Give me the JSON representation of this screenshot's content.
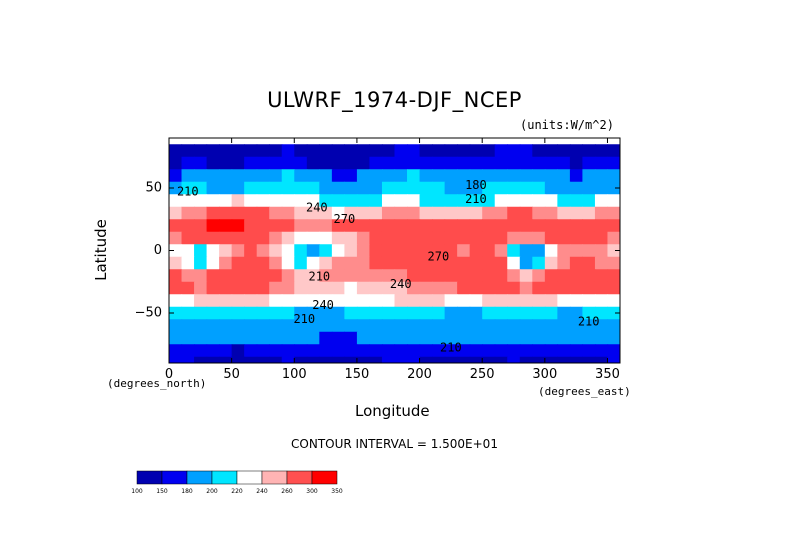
{
  "chart_data": {
    "type": "heatmap",
    "title": "ULWRF_1974-DJF_NCEP",
    "units": "(units:W/m^2)",
    "xlabel": "Longitude",
    "ylabel": "Latitude",
    "x_units": "(degrees_north)",
    "y_units": "(degrees_east)",
    "xlim": [
      0,
      360
    ],
    "ylim": [
      -90,
      90
    ],
    "x_ticks": [
      0,
      50,
      100,
      150,
      200,
      250,
      300,
      350
    ],
    "y_ticks": [
      -50,
      0,
      50
    ],
    "contour_interval": "CONTOUR INTERVAL = 1.500E+01",
    "contour_labels": [
      {
        "value": "210",
        "lon": 15,
        "lat": 47
      },
      {
        "value": "180",
        "lon": 245,
        "lat": 52
      },
      {
        "value": "210",
        "lon": 245,
        "lat": 41
      },
      {
        "value": "240",
        "lon": 118,
        "lat": 34
      },
      {
        "value": "270",
        "lon": 140,
        "lat": 25
      },
      {
        "value": "270",
        "lon": 215,
        "lat": -5
      },
      {
        "value": "240",
        "lon": 185,
        "lat": -27
      },
      {
        "value": "210",
        "lon": 120,
        "lat": -21
      },
      {
        "value": "240",
        "lon": 123,
        "lat": -44
      },
      {
        "value": "210",
        "lon": 108,
        "lat": -55
      },
      {
        "value": "210",
        "lon": 335,
        "lat": -57
      },
      {
        "value": "210",
        "lon": 225,
        "lat": -78
      }
    ],
    "colorbar": {
      "labels": [
        "100",
        "150",
        "180",
        "200",
        "220",
        "240",
        "260",
        "300",
        "350"
      ],
      "colors": [
        "#0000b0",
        "#0000f0",
        "#00a0ff",
        "#00e6ff",
        "#ffffff",
        "#ffb4b4",
        "#ff5050",
        "#ff0000"
      ]
    },
    "field_rows": [
      {
        "lat": 80,
        "values": [
          165,
          170,
          175,
          170,
          168,
          170,
          172,
          175,
          178,
          180,
          175,
          172,
          170,
          168,
          170,
          172,
          175,
          178,
          180,
          182,
          178,
          175,
          172,
          170,
          172,
          175,
          180,
          182,
          180,
          178,
          175,
          172,
          170,
          172,
          175,
          178
        ]
      },
      {
        "lat": 70,
        "values": [
          178,
          180,
          182,
          178,
          175,
          178,
          180,
          182,
          185,
          188,
          182,
          178,
          175,
          172,
          175,
          178,
          182,
          185,
          188,
          190,
          188,
          185,
          182,
          180,
          182,
          185,
          188,
          190,
          188,
          185,
          182,
          180,
          178,
          180,
          182,
          185
        ]
      },
      {
        "lat": 60,
        "values": [
          190,
          195,
          200,
          198,
          195,
          198,
          200,
          205,
          208,
          210,
          205,
          200,
          195,
          192,
          190,
          195,
          200,
          205,
          208,
          210,
          208,
          205,
          200,
          195,
          198,
          200,
          205,
          208,
          205,
          200,
          198,
          195,
          192,
          195,
          198,
          200
        ]
      },
      {
        "lat": 50,
        "values": [
          205,
          210,
          212,
          208,
          205,
          208,
          210,
          215,
          218,
          220,
          215,
          210,
          205,
          200,
          198,
          200,
          205,
          210,
          215,
          218,
          215,
          210,
          205,
          200,
          205,
          210,
          215,
          218,
          215,
          212,
          208,
          205,
          200,
          202,
          205,
          208
        ]
      },
      {
        "lat": 40,
        "values": [
          225,
          228,
          232,
          235,
          238,
          240,
          238,
          235,
          232,
          230,
          228,
          225,
          222,
          218,
          215,
          218,
          222,
          225,
          228,
          225,
          222,
          218,
          215,
          210,
          215,
          222,
          228,
          232,
          230,
          228,
          225,
          222,
          220,
          222,
          225,
          228
        ]
      },
      {
        "lat": 30,
        "values": [
          245,
          250,
          255,
          262,
          268,
          272,
          270,
          262,
          255,
          250,
          248,
          245,
          240,
          238,
          240,
          245,
          248,
          250,
          252,
          250,
          248,
          245,
          242,
          240,
          245,
          252,
          258,
          262,
          260,
          255,
          250,
          248,
          245,
          248,
          250,
          252
        ]
      },
      {
        "lat": 20,
        "values": [
          265,
          272,
          278,
          285,
          290,
          288,
          282,
          275,
          268,
          262,
          258,
          255,
          258,
          262,
          268,
          272,
          275,
          278,
          280,
          282,
          278,
          275,
          272,
          270,
          272,
          275,
          278,
          282,
          280,
          278,
          275,
          272,
          270,
          272,
          275,
          278
        ]
      },
      {
        "lat": 10,
        "values": [
          258,
          262,
          268,
          272,
          275,
          272,
          268,
          262,
          255,
          245,
          238,
          232,
          235,
          240,
          248,
          255,
          262,
          268,
          272,
          275,
          272,
          268,
          265,
          262,
          265,
          268,
          265,
          258,
          252,
          255,
          262,
          268,
          265,
          262,
          260,
          258
        ]
      },
      {
        "lat": 0,
        "values": [
          238,
          225,
          215,
          228,
          248,
          258,
          262,
          258,
          248,
          232,
          215,
          200,
          218,
          238,
          248,
          255,
          262,
          268,
          272,
          275,
          272,
          268,
          262,
          258,
          262,
          265,
          255,
          215,
          195,
          205,
          230,
          250,
          258,
          255,
          250,
          245
        ]
      },
      {
        "lat": -10,
        "values": [
          248,
          232,
          220,
          235,
          255,
          265,
          268,
          262,
          250,
          235,
          220,
          225,
          240,
          250,
          255,
          258,
          262,
          268,
          272,
          275,
          272,
          268,
          265,
          262,
          265,
          268,
          262,
          225,
          205,
          218,
          240,
          258,
          265,
          262,
          258,
          255
        ]
      },
      {
        "lat": -20,
        "values": [
          265,
          258,
          250,
          262,
          272,
          278,
          275,
          268,
          262,
          255,
          248,
          245,
          250,
          255,
          252,
          250,
          252,
          255,
          258,
          262,
          265,
          268,
          270,
          272,
          275,
          278,
          275,
          258,
          245,
          255,
          268,
          275,
          278,
          275,
          272,
          270
        ]
      },
      {
        "lat": -30,
        "values": [
          262,
          265,
          250,
          262,
          268,
          270,
          268,
          262,
          258,
          252,
          248,
          245,
          242,
          240,
          238,
          240,
          242,
          245,
          248,
          250,
          252,
          255,
          258,
          262,
          265,
          268,
          265,
          262,
          258,
          262,
          265,
          268,
          270,
          268,
          265,
          262
        ]
      },
      {
        "lat": -40,
        "values": [
          235,
          238,
          240,
          242,
          245,
          245,
          242,
          240,
          238,
          235,
          232,
          230,
          228,
          228,
          230,
          232,
          235,
          238,
          240,
          242,
          242,
          240,
          238,
          235,
          238,
          240,
          242,
          245,
          245,
          242,
          240,
          238,
          236,
          235,
          235,
          235
        ]
      },
      {
        "lat": -50,
        "values": [
          212,
          215,
          218,
          220,
          222,
          220,
          218,
          215,
          212,
          210,
          208,
          205,
          205,
          208,
          210,
          212,
          215,
          218,
          218,
          215,
          212,
          210,
          208,
          205,
          208,
          210,
          212,
          215,
          215,
          212,
          210,
          208,
          208,
          210,
          212,
          212
        ]
      },
      {
        "lat": -60,
        "values": [
          200,
          202,
          205,
          208,
          205,
          202,
          200,
          198,
          196,
          195,
          196,
          198,
          200,
          202,
          205,
          208,
          205,
          202,
          200,
          198,
          196,
          195,
          196,
          198,
          200,
          202,
          205,
          205,
          202,
          200,
          198,
          200,
          202,
          205,
          205,
          202
        ]
      },
      {
        "lat": -70,
        "values": [
          202,
          200,
          198,
          196,
          198,
          200,
          202,
          205,
          202,
          200,
          198,
          195,
          192,
          190,
          192,
          195,
          198,
          200,
          202,
          200,
          198,
          196,
          195,
          196,
          198,
          200,
          202,
          200,
          198,
          196,
          195,
          196,
          198,
          200,
          202,
          202
        ]
      },
      {
        "lat": -80,
        "values": [
          190,
          188,
          185,
          182,
          180,
          178,
          182,
          185,
          188,
          190,
          188,
          185,
          182,
          180,
          182,
          185,
          188,
          190,
          192,
          190,
          188,
          185,
          182,
          180,
          182,
          185,
          188,
          190,
          188,
          185,
          182,
          180,
          182,
          185,
          188,
          190
        ]
      },
      {
        "lat": -90,
        "values": [
          182,
          180,
          178,
          175,
          172,
          170,
          172,
          175,
          178,
          180,
          178,
          175,
          172,
          170,
          172,
          175,
          178,
          180,
          182,
          180,
          178,
          175,
          172,
          170,
          172,
          175,
          178,
          180,
          178,
          175,
          172,
          170,
          172,
          175,
          178,
          180
        ]
      }
    ]
  }
}
